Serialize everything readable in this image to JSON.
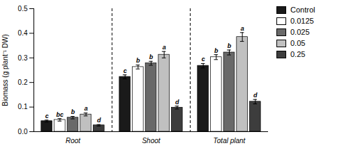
{
  "chart_data": {
    "type": "bar",
    "categories": [
      "Root",
      "Shoot",
      "Total plant"
    ],
    "ylabel": "Biomass (g plant⁻¹ DW)",
    "ylim": [
      0,
      0.5
    ],
    "yticks": [
      {
        "value": 0,
        "label": "0.0"
      },
      0.1,
      0.2,
      0.3,
      0.4,
      0.5
    ],
    "grid": false,
    "legend": "right",
    "series": [
      {
        "name": "Control",
        "color": "#1a1a1a",
        "values": [
          0.043,
          0.223,
          0.268
        ],
        "errors": [
          0.004,
          0.008,
          0.009
        ],
        "annotations": [
          "c",
          "c",
          "c"
        ]
      },
      {
        "name": "0.0125",
        "color": "#ffffff",
        "values": [
          0.048,
          0.263,
          0.303
        ],
        "errors": [
          0.005,
          0.008,
          0.01
        ],
        "annotations": [
          "bc",
          "b",
          "b"
        ]
      },
      {
        "name": "0.025",
        "color": "#696969",
        "values": [
          0.057,
          0.278,
          0.322
        ],
        "errors": [
          0.005,
          0.008,
          0.01
        ],
        "annotations": [
          "b",
          "b",
          "b"
        ]
      },
      {
        "name": "0.05",
        "color": "#c0c0c0",
        "values": [
          0.07,
          0.313,
          0.385
        ],
        "errors": [
          0.006,
          0.013,
          0.018
        ],
        "annotations": [
          "a",
          "a",
          "a"
        ]
      },
      {
        "name": "0.25",
        "color": "#3d3d3d",
        "values": [
          0.026,
          0.098,
          0.122
        ],
        "errors": [
          0.003,
          0.006,
          0.009
        ],
        "annotations": [
          "d",
          "d",
          "d"
        ]
      }
    ]
  }
}
